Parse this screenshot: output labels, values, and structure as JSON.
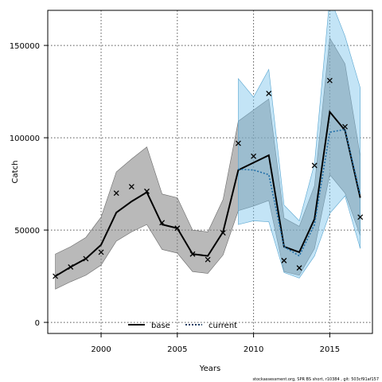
{
  "chart_data": {
    "type": "line",
    "title": "",
    "xlabel": "Years",
    "ylabel": "Catch",
    "xlim": [
      1996.5,
      2017.8
    ],
    "ylim": [
      -6000,
      169000
    ],
    "xticks": [
      2000,
      2005,
      2010,
      2015
    ],
    "yticks": [
      0,
      50000,
      100000,
      150000
    ],
    "xtick_labels": [
      "2000",
      "2005",
      "2010",
      "2015"
    ],
    "ytick_labels": [
      "0",
      "50000",
      "100000",
      "150000"
    ],
    "grid": true,
    "legend_placement": "bottom-center",
    "series": [
      {
        "name": "base",
        "color": "#000000",
        "band_color": "#808080",
        "x": [
          1997,
          1998,
          1999,
          2000,
          2001,
          2002,
          2003,
          2004,
          2005,
          2006,
          2007,
          2008,
          2009,
          2010,
          2011,
          2012,
          2013,
          2014,
          2015,
          2016,
          2017
        ],
        "values": [
          25000,
          30000,
          34500,
          42000,
          59500,
          65500,
          70500,
          53000,
          51000,
          37000,
          36000,
          49000,
          82500,
          86500,
          90500,
          41000,
          38000,
          56000,
          114000,
          104000,
          67500
        ],
        "lower": [
          18000,
          22000,
          25500,
          31000,
          44000,
          49000,
          53000,
          39500,
          37500,
          27500,
          26500,
          36500,
          60500,
          63000,
          66000,
          27500,
          25500,
          40000,
          80000,
          70000,
          47000
        ],
        "upper": [
          37000,
          41000,
          46000,
          57000,
          81500,
          88500,
          95000,
          69500,
          67500,
          50000,
          49000,
          66500,
          109000,
          115000,
          121000,
          56500,
          52000,
          74000,
          154000,
          140000,
          90000
        ]
      },
      {
        "name": "current",
        "color": "#1f6ea8",
        "band_color": "#7ac4ec",
        "x": [
          2009,
          2010,
          2011,
          2012,
          2013,
          2014,
          2015,
          2016,
          2017
        ],
        "values": [
          83000,
          82500,
          80000,
          41000,
          36000,
          53000,
          103000,
          104500,
          69000
        ],
        "lower": [
          53000,
          55000,
          54500,
          27000,
          24000,
          36000,
          59000,
          68500,
          40000
        ],
        "upper": [
          132000,
          122000,
          137000,
          63500,
          55000,
          86000,
          176000,
          155000,
          127000
        ]
      }
    ],
    "observed": {
      "marker": "x",
      "x": [
        1997,
        1998,
        1999,
        2000,
        2001,
        2002,
        2003,
        2004,
        2005,
        2006,
        2007,
        2008,
        2009,
        2010,
        2011,
        2012,
        2013,
        2014,
        2015,
        2016,
        2017
      ],
      "values": [
        25000,
        30000,
        34500,
        38000,
        70000,
        73500,
        71000,
        54000,
        51000,
        37000,
        34000,
        48500,
        97000,
        90000,
        124000,
        33500,
        29500,
        85000,
        131000,
        106000,
        57000
      ]
    },
    "legend": [
      "base",
      "current"
    ],
    "footer": "stockassessment.org, SPR BS short, r10384 , git: 503cf91af157"
  }
}
